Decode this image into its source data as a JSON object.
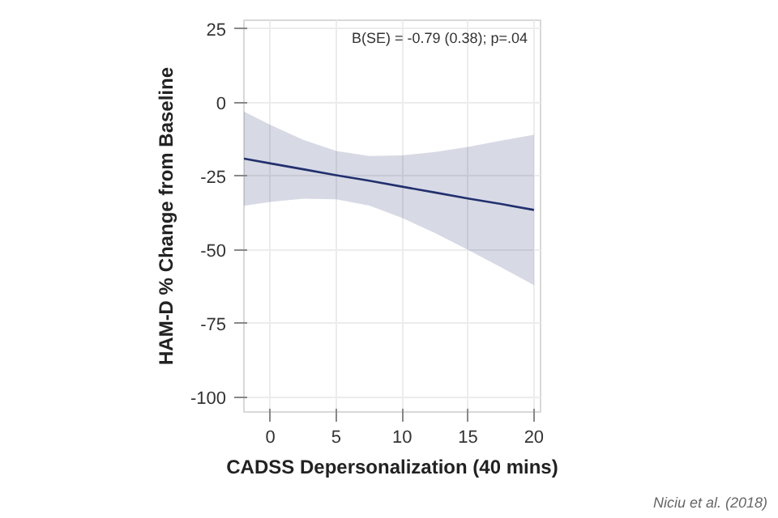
{
  "chart_data": {
    "type": "line",
    "xlabel": "CADSS Depersonalization (40 mins)",
    "ylabel": "HAM-D % Change from Baseline",
    "annotations": [
      "B(SE) = -0.79 (0.38); p=.04",
      "Niciu et al. (2018)"
    ],
    "xlim": [
      -2,
      20.5
    ],
    "ylim": [
      -105,
      28
    ],
    "xticks": [
      0,
      5,
      10,
      15,
      20
    ],
    "yticks": [
      -100,
      -75,
      -50,
      -25,
      0,
      25
    ],
    "grid": true,
    "marker": "none",
    "line_style": "solid",
    "series": [
      {
        "color": "#22306e",
        "x": [
          -2,
          0,
          2.5,
          5,
          7.5,
          10,
          12.5,
          15,
          17.5,
          20
        ],
        "values": [
          -19.0,
          -20.6,
          -22.6,
          -24.6,
          -26.5,
          -28.5,
          -30.5,
          -32.5,
          -34.4,
          -36.4
        ],
        "upper": [
          -3,
          -7.5,
          -12.6,
          -16.4,
          -18.1,
          -17.9,
          -16.7,
          -15,
          -12.9,
          -10.9
        ],
        "lower": [
          -35,
          -33.7,
          -32.6,
          -32.8,
          -34.9,
          -39.1,
          -44.3,
          -50,
          -55.9,
          -61.9
        ]
      }
    ]
  }
}
